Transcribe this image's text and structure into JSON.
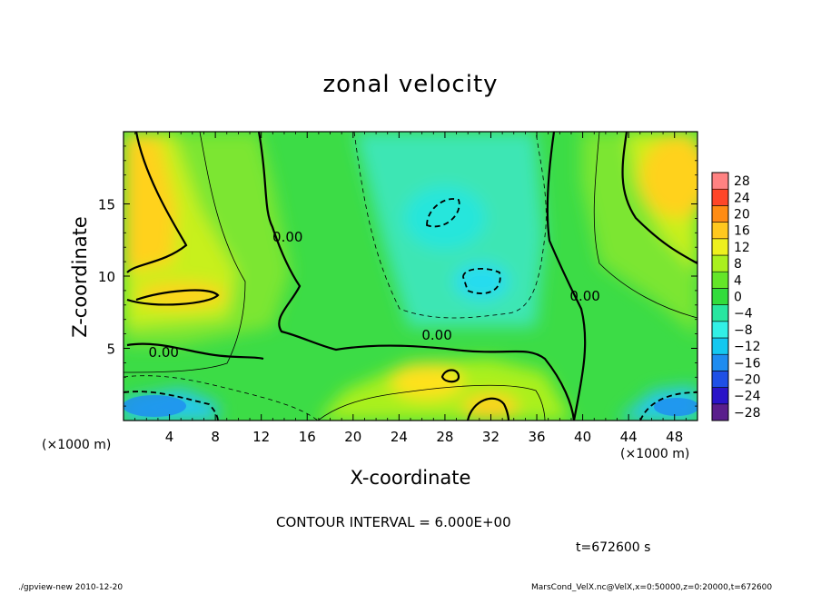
{
  "chart_data": {
    "type": "heatmap",
    "title": "zonal velocity",
    "xlabel": "X-coordinate",
    "ylabel": "Z-coordinate",
    "x_unit_left": "(×1000 m)",
    "x_unit_right": "(×1000 m)",
    "xlim": [
      0,
      50
    ],
    "ylim": [
      0,
      20
    ],
    "x_ticks": [
      4,
      8,
      12,
      16,
      20,
      24,
      28,
      32,
      36,
      40,
      44,
      48
    ],
    "y_ticks": [
      5,
      10,
      15
    ],
    "contour_interval_label": "CONTOUR INTERVAL = 6.000E+00",
    "contour_labels": [
      {
        "text": "0.00",
        "x": 3.5,
        "y": 4.4
      },
      {
        "text": "0.00",
        "x": 27.3,
        "y": 5.6
      },
      {
        "text": "0.00",
        "x": 14.3,
        "y": 12.4
      },
      {
        "text": "0.00",
        "x": 40.2,
        "y": 8.3
      }
    ],
    "colorbar": {
      "levels": [
        -28,
        -24,
        -20,
        -16,
        -12,
        -8,
        -4,
        0,
        4,
        8,
        12,
        16,
        20,
        24,
        28
      ],
      "colors": [
        "#5a1e8c",
        "#2a14c8",
        "#1e50e6",
        "#1e8cf0",
        "#14c8f0",
        "#32f0e6",
        "#28e6a0",
        "#32dc3c",
        "#64e628",
        "#aaf01e",
        "#eef01e",
        "#ffc81e",
        "#ff8c14",
        "#ff4628",
        "#ff8282"
      ],
      "tick_labels": [
        "28",
        "24",
        "20",
        "16",
        "12",
        "8",
        "4",
        "0",
        "−4",
        "−8",
        "−12",
        "−16",
        "−20",
        "−24",
        "−28"
      ]
    },
    "time_label": "t=672600 s"
  },
  "footer": {
    "left": "./gpview-new  2010-12-20",
    "right": "MarsCond_VelX.nc@VelX,x=0:50000,z=0:20000,t=672600"
  }
}
